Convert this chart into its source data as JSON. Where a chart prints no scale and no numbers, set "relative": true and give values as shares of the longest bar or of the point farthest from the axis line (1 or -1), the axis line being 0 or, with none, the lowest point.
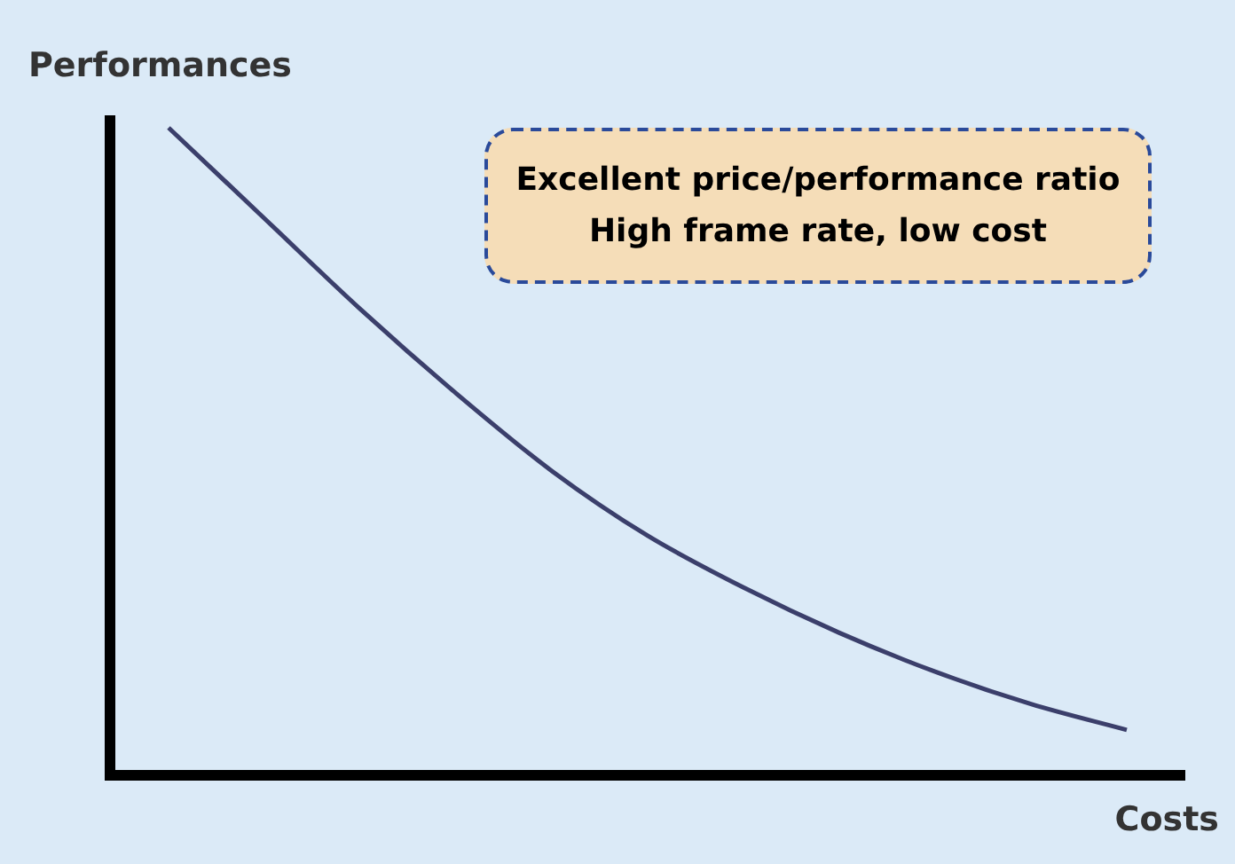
{
  "chart_data": {
    "type": "line",
    "relative": true,
    "xlabel": "Costs",
    "ylabel": "Performances",
    "categories": [
      null,
      null,
      null,
      null,
      null,
      null,
      null,
      null,
      null,
      null,
      null
    ],
    "series": [
      {
        "color": "#3b3f6b",
        "values": [
          1,
          0.86,
          0.72,
          0.59,
          0.47,
          0.37,
          0.29,
          0.22,
          0.16,
          0.11,
          0.07
        ]
      }
    ],
    "annotations": [
      "Excellent price/performance ratio\nHigh frame rate, low cost"
    ],
    "marker": "none",
    "legend": false
  }
}
